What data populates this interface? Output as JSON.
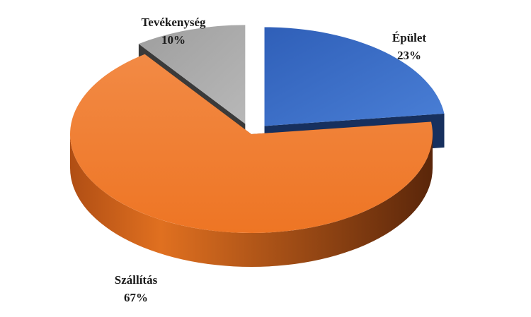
{
  "chart_data": {
    "type": "pie",
    "title": "",
    "slices": [
      {
        "label": "Épület",
        "value": 23,
        "value_label": "23%",
        "color": "#3F72C9",
        "exploded": true
      },
      {
        "label": "Szállítás",
        "value": 67,
        "value_label": "67%",
        "color": "#F07F2D",
        "exploded": false
      },
      {
        "label": "Tevékenység",
        "value": 10,
        "value_label": "10%",
        "color": "#A9A9A9",
        "exploded": true
      }
    ],
    "style": "3d"
  }
}
